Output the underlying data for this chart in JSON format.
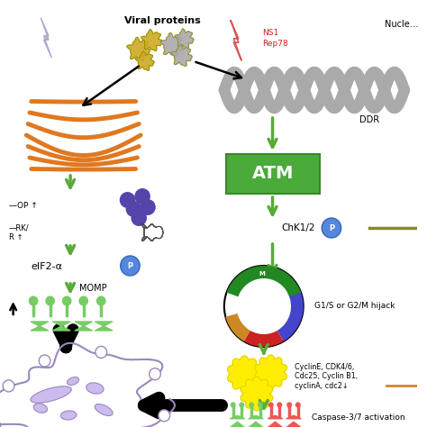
{
  "bg_color": "#ffffff",
  "viral_proteins_label": "Viral proteins",
  "nucleus_label": "Nucle…",
  "DDR_label": "DDR",
  "NS1_label": "NS1",
  "Rep78_label": "Rep78",
  "ATM_label": "ATM",
  "ChK12_label": "ChK1/2",
  "P_label": "P",
  "G1S_label": "G1/S or G2/M hijack",
  "MOMP_label": "MOMP",
  "eIF2a_label": "eIF2-α",
  "cyclin_label": "CyclinE, CDK4/6,\nCdc25, Cyclin B1,\ncyclinA, cdc2↓",
  "caspase_label": "Caspase-3/7 activation",
  "green": "#5aaa3a",
  "orange": "#e07820",
  "gray_dna": "#999999",
  "atm_green": "#4a9a3a",
  "blue_p": "#5588dd",
  "yellow": "#ffee00",
  "red_phase": "#cc2222",
  "blue_phase": "#4444cc",
  "dark_green_phase": "#228822",
  "orange_phase": "#cc8822",
  "purple_cell": "#9988bb",
  "light_purple": "#ccbbee",
  "green_casp": "#77cc66",
  "red_casp": "#ee5555",
  "dark_purple_dots": "#5544aa"
}
